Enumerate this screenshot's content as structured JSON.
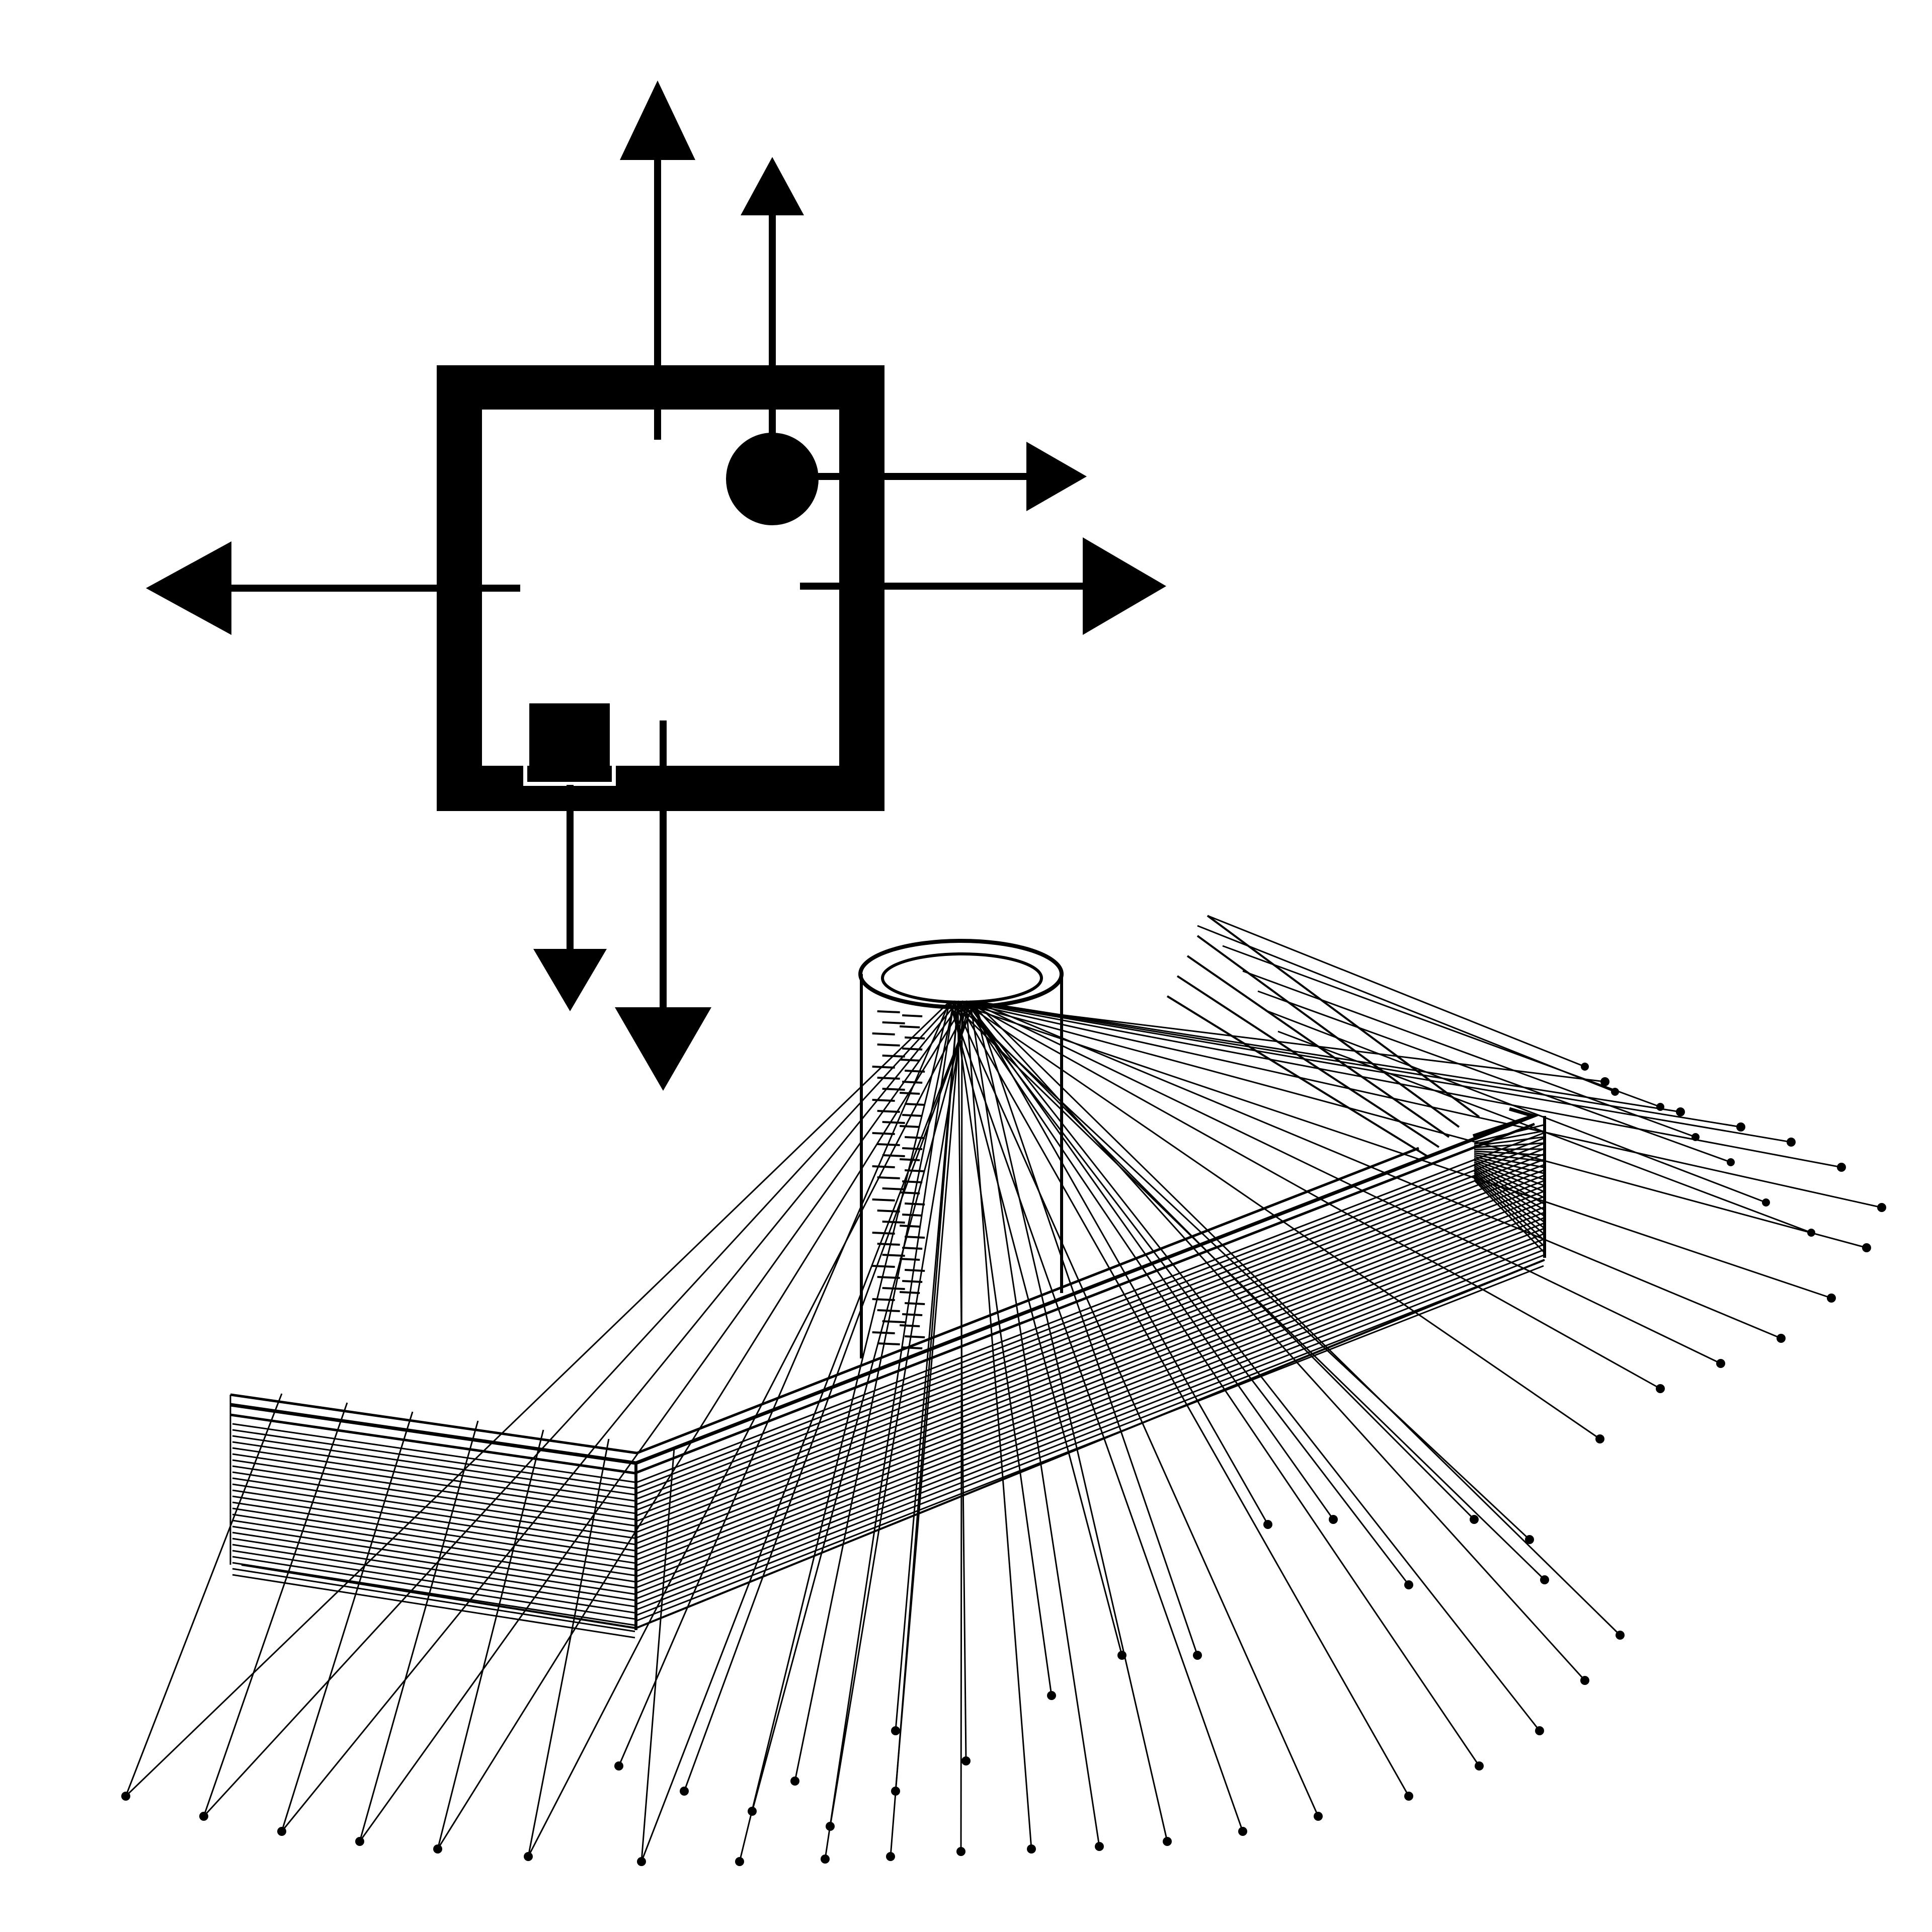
{
  "figure": {
    "ink_color": "#000000",
    "paper_color": "#ffffff",
    "plan": {
      "elements": [
        "square-room-wall",
        "round-column",
        "square-column",
        "arrow-up-left",
        "arrow-up-right",
        "arrow-left",
        "arrow-right-upper",
        "arrow-right-lower",
        "arrow-down-left",
        "arrow-down-right"
      ]
    },
    "perspective": {
      "elements": [
        "cylindrical-column",
        "l-shaped-wall",
        "radiating-lines",
        "ground-dots"
      ]
    }
  }
}
